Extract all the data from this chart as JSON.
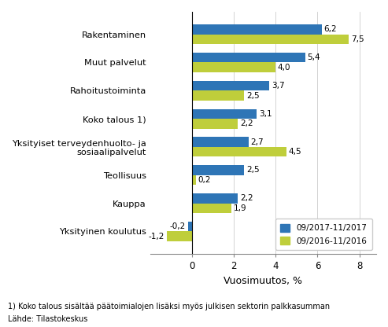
{
  "categories": [
    "Yksityinen koulutus",
    "Kauppa",
    "Teollisuus",
    "Yksityiset terveydenhuolto- ja\nsosiaalipalvelut",
    "Koko talous 1)",
    "Rahoitustoiminta",
    "Muut palvelut",
    "Rakentaminen"
  ],
  "series1_label": "09/2017-11/2017",
  "series2_label": "09/2016-11/2016",
  "series1_values": [
    -0.2,
    2.2,
    2.5,
    2.7,
    3.1,
    3.7,
    5.4,
    6.2
  ],
  "series2_values": [
    -1.2,
    1.9,
    0.2,
    4.5,
    2.2,
    2.5,
    4.0,
    7.5
  ],
  "color1": "#2E75B6",
  "color2": "#BFCE3B",
  "xlabel": "Vuosimuutos, %",
  "xlim": [
    -2.0,
    8.8
  ],
  "xticks": [
    0,
    2,
    4,
    6,
    8
  ],
  "xtick_labels": [
    "0",
    "2",
    "4",
    "6",
    "8"
  ],
  "footnote1": "1) Koko talous sisältää päätoimialojen lisäksi myös julkisen sektorin palkkasumman",
  "footnote2": "Lähde: Tilastokeskus",
  "bar_height": 0.35,
  "background_color": "#ffffff"
}
